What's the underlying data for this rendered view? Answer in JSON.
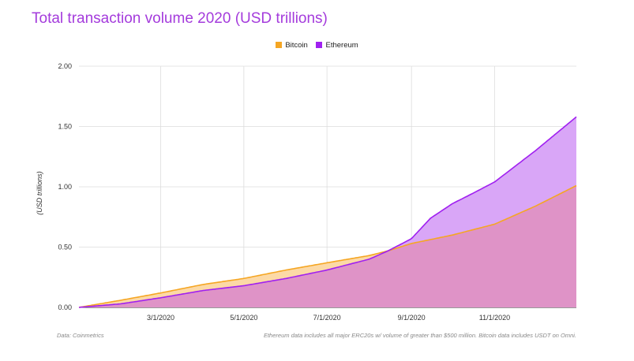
{
  "title": "Total transaction volume 2020 (USD trillions)",
  "source": "Data: Coinmetrics",
  "note": "Ethereum data includes all major ERC20s w/ volume of greater than $500 million. Bitcoin data includes USDT on Omni.",
  "colors": {
    "bitcoin_line": "#f5a623",
    "bitcoin_fill": "#fcd9a6",
    "ethereum_line": "#a020f0",
    "ethereum_fill": "#d9a6f7",
    "overlap_fill": "#df93c7",
    "title": "#a43bdc"
  },
  "chart_data": {
    "type": "area",
    "title": "Total transaction volume 2020 (USD trillions)",
    "ylabel": "(USD trillions)",
    "xlabel": "",
    "ylim": [
      0,
      2.0
    ],
    "xlim": [
      "2020-01-01",
      "2020-12-31"
    ],
    "yticks": [
      "0.00",
      "0.50",
      "1.00",
      "1.50",
      "2.00"
    ],
    "xticks": [
      "3/1/2020",
      "5/1/2020",
      "7/1/2020",
      "9/1/2020",
      "11/1/2020"
    ],
    "grid": true,
    "legend_position": "top-center",
    "series": [
      {
        "name": "Bitcoin",
        "x": [
          "2020-01-01",
          "2020-02-01",
          "2020-03-01",
          "2020-04-01",
          "2020-05-01",
          "2020-06-01",
          "2020-07-01",
          "2020-08-01",
          "2020-08-15",
          "2020-09-01",
          "2020-10-01",
          "2020-11-01",
          "2020-12-01",
          "2020-12-31"
        ],
        "values": [
          0.0,
          0.06,
          0.12,
          0.19,
          0.24,
          0.31,
          0.37,
          0.43,
          0.47,
          0.53,
          0.6,
          0.69,
          0.84,
          1.01
        ]
      },
      {
        "name": "Ethereum",
        "x": [
          "2020-01-01",
          "2020-02-01",
          "2020-03-01",
          "2020-04-01",
          "2020-05-01",
          "2020-06-01",
          "2020-07-01",
          "2020-08-01",
          "2020-08-15",
          "2020-09-01",
          "2020-09-15",
          "2020-10-01",
          "2020-10-15",
          "2020-11-01",
          "2020-12-01",
          "2020-12-31"
        ],
        "values": [
          0.0,
          0.03,
          0.08,
          0.14,
          0.18,
          0.24,
          0.31,
          0.4,
          0.47,
          0.57,
          0.74,
          0.86,
          0.94,
          1.04,
          1.3,
          1.58
        ]
      }
    ]
  }
}
